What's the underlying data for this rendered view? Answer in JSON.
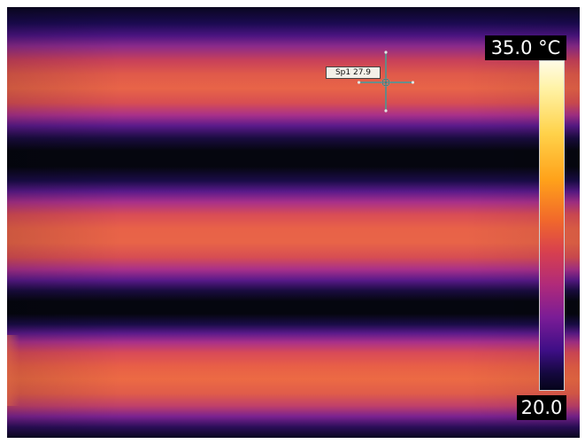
{
  "spot_meter": {
    "label": "Sp1 27.9"
  },
  "color_scale": {
    "max_label": "35.0 °C",
    "min_label": "20.0",
    "palette": "iron"
  },
  "colors": {
    "hot": "#e86448",
    "warm": "#a8308a",
    "cold": "#05060f"
  }
}
